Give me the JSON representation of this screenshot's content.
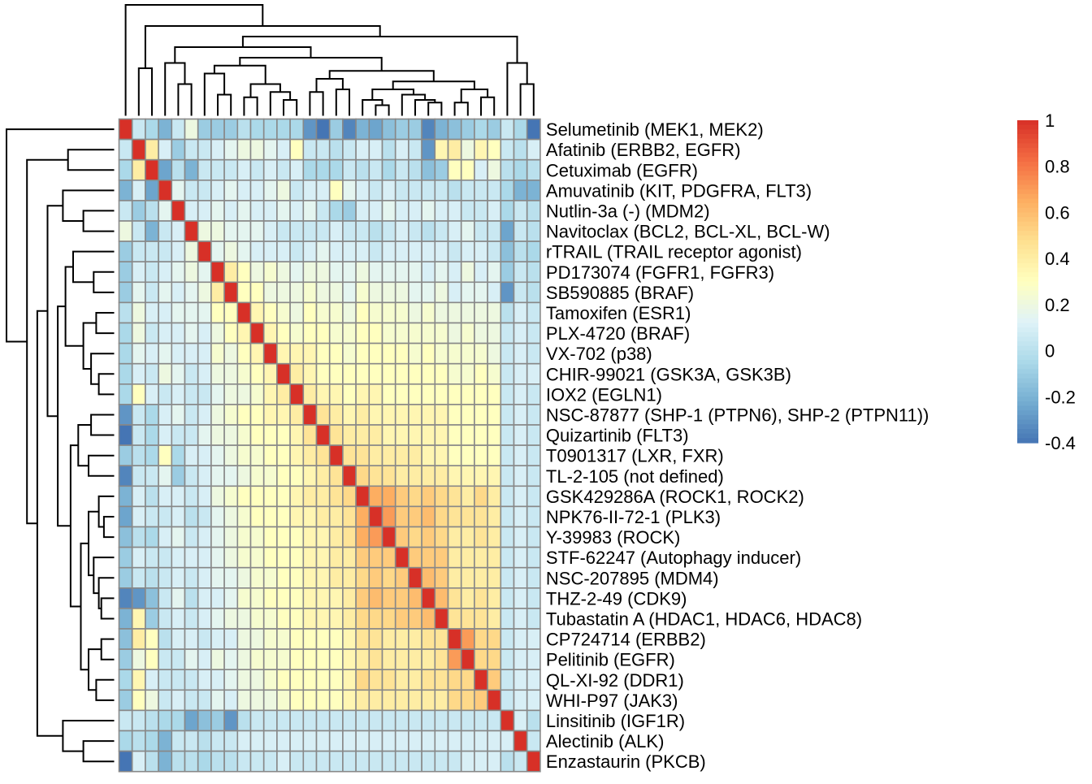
{
  "chart_data": {
    "type": "heatmap",
    "title": "",
    "rows": [
      "Selumetinib (MEK1, MEK2)",
      "Afatinib (ERBB2, EGFR)",
      "Cetuximab (EGFR)",
      "Amuvatinib (KIT, PDGFRA, FLT3)",
      "Nutlin-3a (-) (MDM2)",
      "Navitoclax (BCL2, BCL-XL, BCL-W)",
      "rTRAIL (TRAIL receptor agonist)",
      "PD173074 (FGFR1, FGFR3)",
      "SB590885 (BRAF)",
      "Tamoxifen (ESR1)",
      "PLX-4720 (BRAF)",
      "VX-702 (p38)",
      "CHIR-99021 (GSK3A, GSK3B)",
      "IOX2 (EGLN1)",
      "NSC-87877 (SHP-1 (PTPN6), SHP-2 (PTPN11))",
      "Quizartinib (FLT3)",
      "T0901317 (LXR, FXR)",
      "TL-2-105 (not defined)",
      "GSK429286A (ROCK1, ROCK2)",
      "NPK76-II-72-1 (PLK3)",
      "Y-39983 (ROCK)",
      "STF-62247 (Autophagy inducer)",
      "NSC-207895 (MDM4)",
      "THZ-2-49 (CDK9)",
      "Tubastatin A (HDAC1, HDAC6, HDAC8)",
      "CP724714 (ERBB2)",
      "Pelitinib (EGFR)",
      "QL-XI-92 (DDR1)",
      "WHI-P97 (JAK3)",
      "Linsitinib (IGF1R)",
      "Alectinib (ALK)",
      "Enzastaurin (PKCB)"
    ],
    "values": [
      [
        1.0,
        0.05,
        -0.05,
        -0.2,
        0.05,
        0.2,
        -0.1,
        -0.1,
        -0.1,
        0.0,
        -0.05,
        -0.05,
        -0.05,
        -0.05,
        -0.3,
        -0.4,
        -0.1,
        -0.35,
        -0.2,
        -0.25,
        -0.15,
        -0.1,
        -0.1,
        -0.35,
        -0.2,
        -0.15,
        -0.1,
        -0.05,
        -0.1,
        0.05,
        -0.05,
        -0.4
      ],
      [
        0.05,
        1.0,
        0.4,
        0.1,
        -0.1,
        0.05,
        0.05,
        0.1,
        0.15,
        0.2,
        0.2,
        0.15,
        0.1,
        0.3,
        0.05,
        0.05,
        0.0,
        0.05,
        0.1,
        0.1,
        0.0,
        0.1,
        0.05,
        -0.3,
        0.35,
        0.4,
        0.2,
        0.35,
        0.3,
        0.05,
        0.0,
        0.1
      ],
      [
        -0.05,
        0.4,
        1.0,
        -0.25,
        0.0,
        -0.2,
        0.05,
        0.05,
        0.05,
        0.1,
        0.05,
        0.1,
        0.05,
        0.1,
        -0.05,
        -0.05,
        -0.05,
        0.05,
        0.0,
        0.05,
        -0.05,
        0.05,
        0.0,
        -0.15,
        -0.1,
        0.3,
        0.3,
        0.1,
        0.2,
        0.0,
        -0.05,
        0.0
      ],
      [
        -0.2,
        0.1,
        -0.25,
        1.0,
        0.15,
        0.05,
        0.05,
        0.1,
        0.15,
        0.1,
        0.1,
        0.15,
        0.2,
        0.05,
        0.1,
        0.1,
        0.3,
        0.15,
        0.1,
        0.05,
        0.1,
        0.05,
        0.05,
        0.05,
        0.05,
        0.0,
        0.05,
        0.05,
        0.05,
        -0.05,
        -0.2,
        -0.2
      ],
      [
        0.05,
        -0.1,
        0.0,
        0.15,
        1.0,
        0.1,
        0.1,
        0.15,
        0.1,
        0.15,
        0.1,
        0.1,
        0.15,
        0.1,
        0.15,
        0.05,
        -0.05,
        -0.1,
        0.1,
        0.1,
        0.15,
        0.1,
        0.1,
        0.15,
        0.1,
        0.1,
        0.05,
        0.05,
        0.1,
        -0.05,
        0.05,
        0.0
      ],
      [
        0.2,
        0.05,
        -0.2,
        0.05,
        0.1,
        1.0,
        0.2,
        0.2,
        0.15,
        0.15,
        0.15,
        0.1,
        0.05,
        0.05,
        0.05,
        0.05,
        0.1,
        0.05,
        0.05,
        0.0,
        0.05,
        0.1,
        0.05,
        0.0,
        0.05,
        0.1,
        0.15,
        0.05,
        0.05,
        -0.25,
        0.05,
        0.0
      ],
      [
        -0.1,
        0.05,
        0.05,
        0.05,
        0.1,
        0.2,
        1.0,
        0.15,
        0.2,
        0.15,
        0.1,
        0.1,
        0.1,
        0.05,
        0.1,
        0.15,
        0.1,
        0.1,
        0.1,
        0.05,
        0.1,
        0.1,
        0.1,
        0.1,
        0.1,
        0.05,
        0.1,
        0.1,
        0.05,
        -0.15,
        0.0,
        -0.05
      ],
      [
        -0.1,
        0.1,
        0.05,
        0.1,
        0.15,
        0.2,
        0.15,
        1.0,
        0.4,
        0.3,
        0.2,
        0.25,
        0.2,
        0.15,
        0.2,
        0.2,
        0.15,
        0.15,
        0.2,
        0.15,
        0.15,
        0.15,
        0.15,
        0.1,
        0.15,
        0.1,
        0.2,
        0.1,
        0.15,
        -0.1,
        0.05,
        0.0
      ],
      [
        -0.1,
        0.15,
        0.05,
        0.15,
        0.1,
        0.15,
        0.2,
        0.4,
        1.0,
        0.3,
        0.3,
        0.2,
        0.2,
        0.2,
        0.25,
        0.2,
        0.2,
        0.15,
        0.25,
        0.2,
        0.2,
        0.2,
        0.15,
        0.15,
        0.2,
        0.1,
        0.15,
        0.15,
        0.1,
        -0.3,
        0.05,
        0.0
      ],
      [
        0.0,
        0.2,
        0.1,
        0.1,
        0.15,
        0.15,
        0.15,
        0.3,
        0.3,
        1.0,
        0.35,
        0.3,
        0.25,
        0.2,
        0.3,
        0.25,
        0.25,
        0.2,
        0.3,
        0.25,
        0.25,
        0.25,
        0.2,
        0.25,
        0.2,
        0.2,
        0.2,
        0.2,
        0.2,
        0.0,
        0.1,
        0.05
      ],
      [
        -0.05,
        0.2,
        0.05,
        0.1,
        0.1,
        0.15,
        0.1,
        0.2,
        0.3,
        0.35,
        1.0,
        0.35,
        0.3,
        0.25,
        0.3,
        0.3,
        0.25,
        0.25,
        0.3,
        0.3,
        0.25,
        0.25,
        0.25,
        0.25,
        0.25,
        0.2,
        0.25,
        0.2,
        0.2,
        0.05,
        0.1,
        0.05
      ],
      [
        -0.05,
        0.15,
        0.1,
        0.15,
        0.1,
        0.1,
        0.1,
        0.25,
        0.2,
        0.3,
        0.35,
        1.0,
        0.35,
        0.35,
        0.35,
        0.3,
        0.3,
        0.25,
        0.3,
        0.3,
        0.3,
        0.3,
        0.25,
        0.3,
        0.25,
        0.25,
        0.25,
        0.25,
        0.2,
        0.05,
        0.1,
        0.05
      ],
      [
        -0.05,
        0.1,
        0.05,
        0.2,
        0.15,
        0.05,
        0.1,
        0.2,
        0.2,
        0.25,
        0.3,
        0.35,
        1.0,
        0.4,
        0.35,
        0.3,
        0.3,
        0.3,
        0.3,
        0.3,
        0.3,
        0.3,
        0.3,
        0.3,
        0.3,
        0.25,
        0.25,
        0.3,
        0.25,
        0.05,
        0.1,
        0.1
      ],
      [
        -0.05,
        0.3,
        0.1,
        0.05,
        0.1,
        0.05,
        0.05,
        0.15,
        0.2,
        0.2,
        0.25,
        0.35,
        0.4,
        1.0,
        0.4,
        0.35,
        0.35,
        0.3,
        0.35,
        0.35,
        0.3,
        0.3,
        0.3,
        0.3,
        0.3,
        0.3,
        0.3,
        0.3,
        0.3,
        0.05,
        0.1,
        0.05
      ],
      [
        -0.3,
        0.05,
        -0.05,
        0.1,
        0.15,
        0.05,
        0.1,
        0.2,
        0.25,
        0.3,
        0.3,
        0.35,
        0.35,
        0.4,
        1.0,
        0.45,
        0.4,
        0.35,
        0.4,
        0.35,
        0.35,
        0.35,
        0.35,
        0.35,
        0.35,
        0.3,
        0.3,
        0.3,
        0.3,
        0.05,
        0.1,
        0.05
      ],
      [
        -0.4,
        0.05,
        -0.05,
        0.1,
        0.05,
        0.05,
        0.15,
        0.2,
        0.2,
        0.25,
        0.3,
        0.3,
        0.3,
        0.35,
        0.45,
        1.0,
        0.45,
        0.4,
        0.4,
        0.4,
        0.35,
        0.35,
        0.35,
        0.35,
        0.35,
        0.3,
        0.3,
        0.3,
        0.3,
        0.05,
        0.1,
        0.05
      ],
      [
        -0.1,
        0.0,
        -0.05,
        0.3,
        -0.05,
        0.1,
        0.1,
        0.15,
        0.2,
        0.25,
        0.25,
        0.3,
        0.3,
        0.35,
        0.4,
        0.45,
        1.0,
        0.45,
        0.45,
        0.4,
        0.4,
        0.4,
        0.4,
        0.35,
        0.35,
        0.3,
        0.3,
        0.3,
        0.3,
        0.05,
        0.1,
        0.05
      ],
      [
        -0.35,
        0.05,
        0.05,
        0.15,
        -0.1,
        0.05,
        0.1,
        0.15,
        0.15,
        0.2,
        0.25,
        0.25,
        0.3,
        0.3,
        0.35,
        0.4,
        0.45,
        1.0,
        0.5,
        0.45,
        0.45,
        0.4,
        0.4,
        0.4,
        0.4,
        0.35,
        0.35,
        0.35,
        0.35,
        0.05,
        0.1,
        0.05
      ],
      [
        -0.2,
        0.1,
        0.0,
        0.1,
        0.1,
        0.05,
        0.1,
        0.2,
        0.25,
        0.3,
        0.3,
        0.3,
        0.3,
        0.35,
        0.4,
        0.4,
        0.45,
        0.5,
        1.0,
        0.65,
        0.65,
        0.55,
        0.5,
        0.55,
        0.5,
        0.45,
        0.4,
        0.5,
        0.4,
        0.05,
        0.1,
        0.05
      ],
      [
        -0.25,
        0.1,
        0.05,
        0.05,
        0.1,
        0.0,
        0.05,
        0.15,
        0.2,
        0.25,
        0.3,
        0.3,
        0.3,
        0.35,
        0.35,
        0.4,
        0.4,
        0.45,
        0.65,
        1.0,
        0.7,
        0.55,
        0.55,
        0.6,
        0.5,
        0.45,
        0.45,
        0.45,
        0.4,
        0.05,
        0.1,
        0.05
      ],
      [
        -0.15,
        0.0,
        -0.05,
        0.1,
        0.15,
        0.05,
        0.1,
        0.15,
        0.2,
        0.25,
        0.25,
        0.3,
        0.3,
        0.3,
        0.35,
        0.35,
        0.4,
        0.45,
        0.65,
        0.7,
        1.0,
        0.55,
        0.5,
        0.55,
        0.5,
        0.4,
        0.4,
        0.45,
        0.4,
        0.05,
        0.1,
        0.05
      ],
      [
        -0.1,
        0.1,
        0.05,
        0.05,
        0.1,
        0.1,
        0.1,
        0.15,
        0.2,
        0.25,
        0.25,
        0.3,
        0.3,
        0.3,
        0.35,
        0.35,
        0.4,
        0.4,
        0.55,
        0.55,
        0.55,
        1.0,
        0.55,
        0.55,
        0.55,
        0.4,
        0.4,
        0.4,
        0.4,
        0.05,
        0.1,
        0.05
      ],
      [
        -0.1,
        0.05,
        0.0,
        0.05,
        0.1,
        0.05,
        0.1,
        0.15,
        0.15,
        0.2,
        0.25,
        0.25,
        0.3,
        0.3,
        0.35,
        0.35,
        0.4,
        0.4,
        0.5,
        0.55,
        0.5,
        0.55,
        1.0,
        0.6,
        0.55,
        0.4,
        0.4,
        0.4,
        0.4,
        0.05,
        0.1,
        0.05
      ],
      [
        -0.35,
        -0.3,
        -0.15,
        0.05,
        0.15,
        0.0,
        0.1,
        0.1,
        0.15,
        0.25,
        0.25,
        0.3,
        0.3,
        0.3,
        0.35,
        0.35,
        0.35,
        0.4,
        0.55,
        0.6,
        0.55,
        0.55,
        0.6,
        1.0,
        0.6,
        0.45,
        0.4,
        0.45,
        0.4,
        0.05,
        0.1,
        0.05
      ],
      [
        -0.2,
        0.35,
        -0.1,
        0.05,
        0.1,
        0.05,
        0.1,
        0.15,
        0.2,
        0.2,
        0.25,
        0.25,
        0.3,
        0.3,
        0.35,
        0.35,
        0.35,
        0.4,
        0.5,
        0.5,
        0.5,
        0.55,
        0.55,
        0.6,
        1.0,
        0.45,
        0.45,
        0.45,
        0.4,
        0.05,
        0.1,
        0.05
      ],
      [
        -0.15,
        0.4,
        0.3,
        0.0,
        0.1,
        0.1,
        0.05,
        0.1,
        0.1,
        0.2,
        0.2,
        0.25,
        0.25,
        0.3,
        0.3,
        0.3,
        0.3,
        0.35,
        0.45,
        0.45,
        0.4,
        0.4,
        0.4,
        0.45,
        0.45,
        1.0,
        0.7,
        0.5,
        0.5,
        0.05,
        0.1,
        0.1
      ],
      [
        -0.1,
        0.2,
        0.3,
        0.05,
        0.05,
        0.15,
        0.1,
        0.2,
        0.15,
        0.2,
        0.25,
        0.25,
        0.25,
        0.3,
        0.3,
        0.3,
        0.3,
        0.35,
        0.4,
        0.45,
        0.4,
        0.4,
        0.4,
        0.4,
        0.45,
        0.7,
        1.0,
        0.5,
        0.5,
        0.05,
        0.1,
        0.1
      ],
      [
        -0.05,
        0.35,
        0.1,
        0.05,
        0.05,
        0.05,
        0.1,
        0.1,
        0.15,
        0.2,
        0.2,
        0.25,
        0.3,
        0.3,
        0.3,
        0.3,
        0.3,
        0.35,
        0.5,
        0.45,
        0.45,
        0.4,
        0.4,
        0.45,
        0.45,
        0.5,
        0.5,
        1.0,
        0.55,
        0.05,
        0.1,
        0.1
      ],
      [
        -0.1,
        0.3,
        0.2,
        0.05,
        0.1,
        0.05,
        0.05,
        0.15,
        0.1,
        0.2,
        0.2,
        0.2,
        0.25,
        0.3,
        0.3,
        0.3,
        0.3,
        0.35,
        0.4,
        0.4,
        0.4,
        0.4,
        0.4,
        0.4,
        0.4,
        0.5,
        0.5,
        0.55,
        1.0,
        0.05,
        0.1,
        0.1
      ],
      [
        0.05,
        0.05,
        0.0,
        -0.05,
        -0.05,
        -0.25,
        -0.15,
        -0.1,
        -0.3,
        0.0,
        0.05,
        0.05,
        0.05,
        0.05,
        0.05,
        0.05,
        0.05,
        0.05,
        0.05,
        0.05,
        0.05,
        0.05,
        0.05,
        0.05,
        0.05,
        0.05,
        0.05,
        0.05,
        0.05,
        1.0,
        0.1,
        0.0
      ],
      [
        -0.05,
        0.0,
        -0.05,
        -0.2,
        0.05,
        0.05,
        0.0,
        0.05,
        0.05,
        0.1,
        0.1,
        0.1,
        0.1,
        0.1,
        0.1,
        0.1,
        0.1,
        0.1,
        0.1,
        0.1,
        0.1,
        0.1,
        0.1,
        0.1,
        0.1,
        0.1,
        0.1,
        0.1,
        0.1,
        0.1,
        1.0,
        0.05
      ],
      [
        -0.4,
        0.1,
        0.0,
        -0.2,
        0.0,
        0.0,
        -0.05,
        0.0,
        0.0,
        0.05,
        0.05,
        0.05,
        0.1,
        0.05,
        0.05,
        0.05,
        0.05,
        0.05,
        0.05,
        0.05,
        0.05,
        0.05,
        0.05,
        0.05,
        0.05,
        0.05,
        0.1,
        0.1,
        0.1,
        0.0,
        0.05,
        1.0
      ]
    ],
    "colorbar": {
      "min": -0.4,
      "max": 1.0,
      "tick_labels": [
        "1",
        "0.8",
        "0.6",
        "0.4",
        "0.2",
        "0",
        "-0.2",
        "-0.4"
      ],
      "tick_values": [
        1.0,
        0.8,
        0.6,
        0.4,
        0.2,
        0.0,
        -0.2,
        -0.4
      ],
      "colors": [
        "#4575b4",
        "#74add1",
        "#abd9e9",
        "#e0f3f8",
        "#ffffbf",
        "#fee090",
        "#fdae61",
        "#f46d43",
        "#d73027"
      ]
    },
    "cell_border_color": "#888888",
    "dendrogram": {
      "type": "hierarchical",
      "leaf_order": "rows",
      "color": "#000000"
    }
  }
}
